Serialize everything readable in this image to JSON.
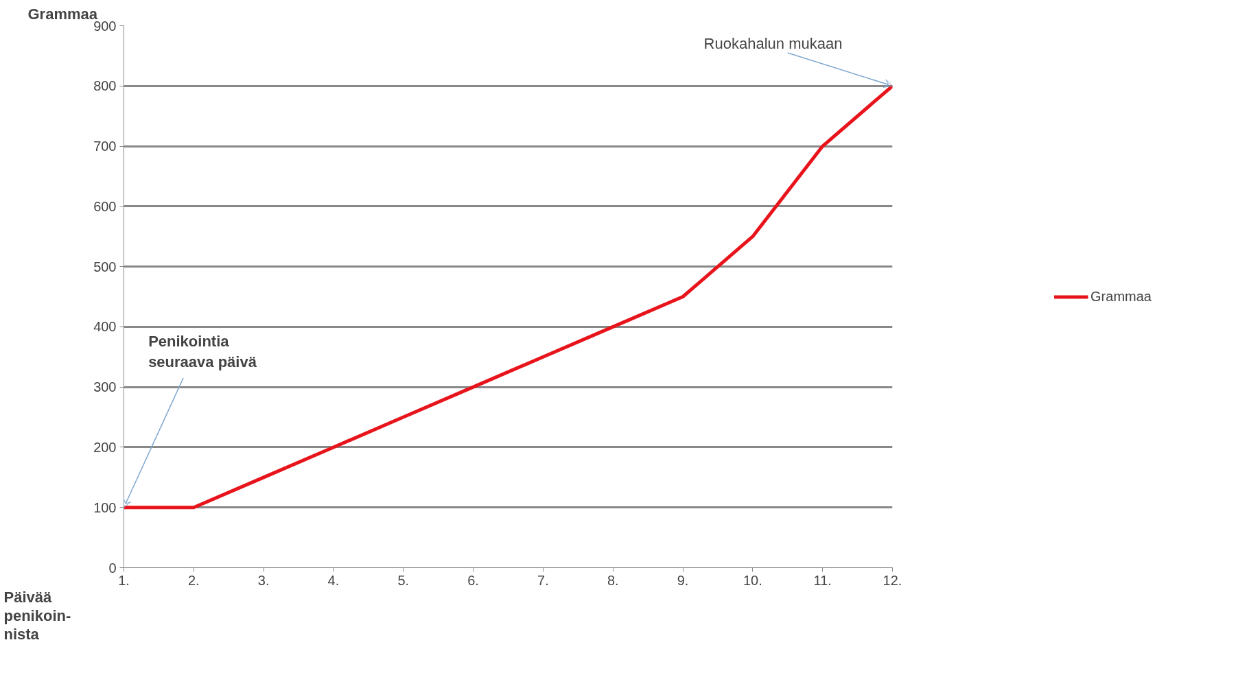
{
  "chart_data": {
    "type": "line",
    "ylabel": "Grammaa",
    "xlabel": "Päivää\npenikoin-\nnista",
    "categories": [
      "1.",
      "2.",
      "3.",
      "4.",
      "5.",
      "6.",
      "7.",
      "8.",
      "9.",
      "10.",
      "11.",
      "12."
    ],
    "series": [
      {
        "name": "Grammaa",
        "color": "#e8141b",
        "values": [
          100,
          100,
          150,
          200,
          250,
          300,
          350,
          400,
          450,
          550,
          700,
          800
        ]
      }
    ],
    "ylim": [
      0,
      900
    ],
    "yticks": [
      0,
      100,
      200,
      300,
      400,
      500,
      600,
      700,
      800,
      900
    ],
    "grid": "y",
    "legend": "right",
    "marker": "none",
    "line_style": "solid",
    "annotations": [
      {
        "text": "Ruokahalun mukaan",
        "x": "12.",
        "y": 800
      },
      {
        "text": "Penikointia\nseuraava päivä",
        "x": "1.",
        "y": 100
      }
    ]
  }
}
